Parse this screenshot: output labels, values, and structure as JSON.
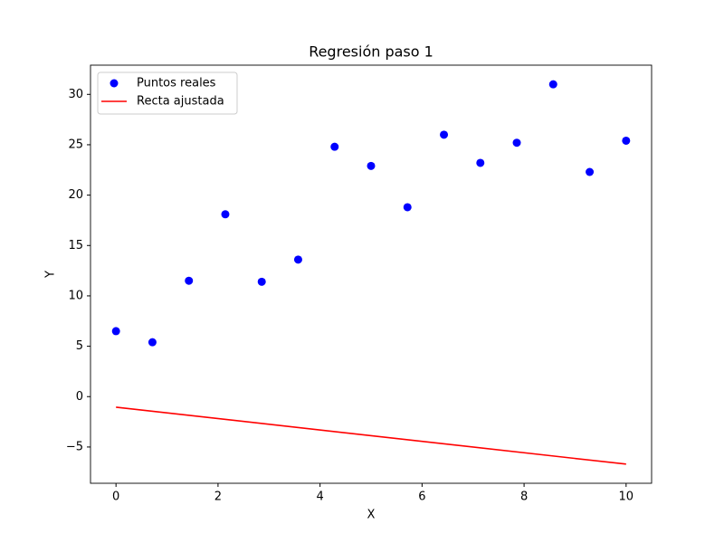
{
  "chart_data": {
    "type": "scatter",
    "title": "Regresión paso 1",
    "xlabel": "X",
    "ylabel": "Y",
    "series": [
      {
        "name": "Puntos reales",
        "color": "#0000ff",
        "kind": "scatter",
        "x": [
          0,
          0.714,
          1.429,
          2.143,
          2.857,
          3.571,
          4.286,
          5,
          5.714,
          6.429,
          7.143,
          7.857,
          8.571,
          9.286,
          10
        ],
        "values": [
          6.5,
          5.4,
          11.5,
          18.1,
          11.4,
          13.6,
          24.8,
          22.9,
          18.8,
          26.0,
          23.2,
          25.2,
          31.0,
          22.3,
          25.4
        ]
      },
      {
        "name": "Recta ajustada",
        "color": "#ff0000",
        "kind": "line",
        "x": [
          0,
          10
        ],
        "values": [
          -1.05,
          -6.7
        ]
      }
    ],
    "xlim": [
      -0.5,
      10.5
    ],
    "xticks": [
      0,
      2,
      4,
      6,
      8,
      10
    ],
    "ylim": [
      -8.6,
      32.9
    ],
    "yticks": [
      {
        "value": -5,
        "label": "−5"
      },
      0,
      5,
      10,
      15,
      20,
      25,
      30
    ],
    "legend": "upper left",
    "grid": false
  }
}
